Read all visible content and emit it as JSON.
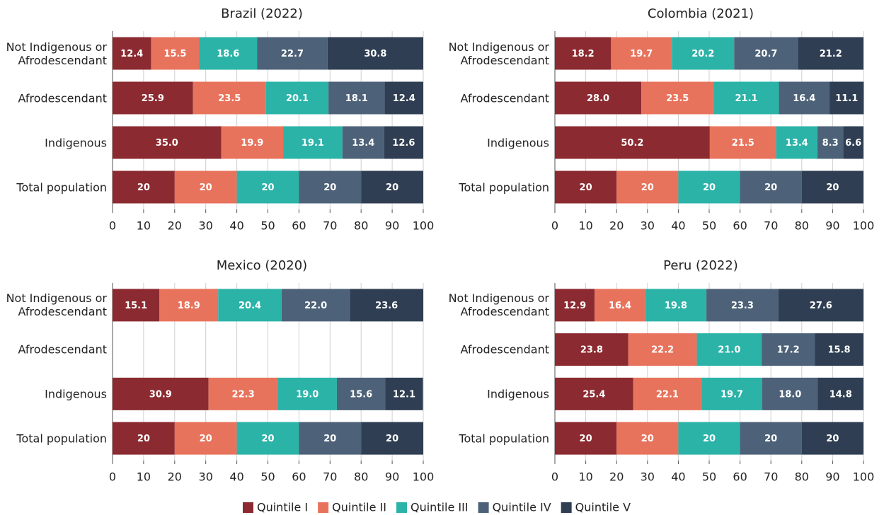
{
  "chart_data": [
    {
      "type": "bar",
      "orientation": "horizontal",
      "title": "Brazil (2022)",
      "categories": [
        "Not Indigenous or Afrodescendant",
        "Afrodescendant",
        "Indigenous",
        "Total population"
      ],
      "series": [
        {
          "name": "Quintile I",
          "color": "#8b2a30",
          "values": [
            12.4,
            25.9,
            35.0,
            20
          ],
          "value_labels": [
            "12.4",
            "25.9",
            "35.0",
            "20"
          ]
        },
        {
          "name": "Quintile II",
          "color": "#e8735c",
          "values": [
            15.5,
            23.5,
            19.9,
            20
          ],
          "value_labels": [
            "15.5",
            "23.5",
            "19.9",
            "20"
          ]
        },
        {
          "name": "Quintile III",
          "color": "#2bb3a8",
          "values": [
            18.6,
            20.1,
            19.1,
            20
          ],
          "value_labels": [
            "18.6",
            "20.1",
            "19.1",
            "20"
          ]
        },
        {
          "name": "Quintile IV",
          "color": "#4d6278",
          "values": [
            22.7,
            18.1,
            13.4,
            20
          ],
          "value_labels": [
            "22.7",
            "18.1",
            "13.4",
            "20"
          ]
        },
        {
          "name": "Quintile V",
          "color": "#2f3e52",
          "values": [
            30.8,
            12.4,
            12.6,
            20
          ],
          "value_labels": [
            "30.8",
            "12.4",
            "12.6",
            "20"
          ]
        }
      ],
      "xlim": [
        0,
        100
      ],
      "xticks": [
        0,
        10,
        20,
        30,
        40,
        50,
        60,
        70,
        80,
        90,
        100
      ],
      "grid": true
    },
    {
      "type": "bar",
      "orientation": "horizontal",
      "title": "Colombia (2021)",
      "categories": [
        "Not Indigenous or Afrodescendant",
        "Afrodescendant",
        "Indigenous",
        "Total population"
      ],
      "series": [
        {
          "name": "Quintile I",
          "color": "#8b2a30",
          "values": [
            18.2,
            28.0,
            50.2,
            20
          ],
          "value_labels": [
            "18.2",
            "28.0",
            "50.2",
            "20"
          ]
        },
        {
          "name": "Quintile II",
          "color": "#e8735c",
          "values": [
            19.7,
            23.5,
            21.5,
            20
          ],
          "value_labels": [
            "19.7",
            "23.5",
            "21.5",
            "20"
          ]
        },
        {
          "name": "Quintile III",
          "color": "#2bb3a8",
          "values": [
            20.2,
            21.1,
            13.4,
            20
          ],
          "value_labels": [
            "20.2",
            "21.1",
            "13.4",
            "20"
          ]
        },
        {
          "name": "Quintile IV",
          "color": "#4d6278",
          "values": [
            20.7,
            16.4,
            8.3,
            20
          ],
          "value_labels": [
            "20.7",
            "16.4",
            "8.3",
            "20"
          ]
        },
        {
          "name": "Quintile V",
          "color": "#2f3e52",
          "values": [
            21.2,
            11.1,
            6.6,
            20
          ],
          "value_labels": [
            "21.2",
            "11.1",
            "6.6",
            "20"
          ]
        }
      ],
      "xlim": [
        0,
        100
      ],
      "xticks": [
        0,
        10,
        20,
        30,
        40,
        50,
        60,
        70,
        80,
        90,
        100
      ],
      "grid": true
    },
    {
      "type": "bar",
      "orientation": "horizontal",
      "title": "Mexico (2020)",
      "categories": [
        "Not Indigenous or Afrodescendant",
        "Afrodescendant",
        "Indigenous",
        "Total population"
      ],
      "series": [
        {
          "name": "Quintile I",
          "color": "#8b2a30",
          "values": [
            15.1,
            null,
            30.9,
            20
          ],
          "value_labels": [
            "15.1",
            null,
            "30.9",
            "20"
          ]
        },
        {
          "name": "Quintile II",
          "color": "#e8735c",
          "values": [
            18.9,
            null,
            22.3,
            20
          ],
          "value_labels": [
            "18.9",
            null,
            "22.3",
            "20"
          ]
        },
        {
          "name": "Quintile III",
          "color": "#2bb3a8",
          "values": [
            20.4,
            null,
            19.0,
            20
          ],
          "value_labels": [
            "20.4",
            null,
            "19.0",
            "20"
          ]
        },
        {
          "name": "Quintile IV",
          "color": "#4d6278",
          "values": [
            22.0,
            null,
            15.6,
            20
          ],
          "value_labels": [
            "22.0",
            null,
            "15.6",
            "20"
          ]
        },
        {
          "name": "Quintile V",
          "color": "#2f3e52",
          "values": [
            23.6,
            null,
            12.1,
            20
          ],
          "value_labels": [
            "23.6",
            null,
            "12.1",
            "20"
          ]
        }
      ],
      "xlim": [
        0,
        100
      ],
      "xticks": [
        0,
        10,
        20,
        30,
        40,
        50,
        60,
        70,
        80,
        90,
        100
      ],
      "grid": true
    },
    {
      "type": "bar",
      "orientation": "horizontal",
      "title": "Peru (2022)",
      "categories": [
        "Not Indigenous or Afrodescendant",
        "Afrodescendant",
        "Indigenous",
        "Total population"
      ],
      "series": [
        {
          "name": "Quintile I",
          "color": "#8b2a30",
          "values": [
            12.9,
            23.8,
            25.4,
            20
          ],
          "value_labels": [
            "12.9",
            "23.8",
            "25.4",
            "20"
          ]
        },
        {
          "name": "Quintile II",
          "color": "#e8735c",
          "values": [
            16.4,
            22.2,
            22.1,
            20
          ],
          "value_labels": [
            "16.4",
            "22.2",
            "22.1",
            "20"
          ]
        },
        {
          "name": "Quintile III",
          "color": "#2bb3a8",
          "values": [
            19.8,
            21.0,
            19.7,
            20
          ],
          "value_labels": [
            "19.8",
            "21.0",
            "19.7",
            "20"
          ]
        },
        {
          "name": "Quintile IV",
          "color": "#4d6278",
          "values": [
            23.3,
            17.2,
            18.0,
            20
          ],
          "value_labels": [
            "23.3",
            "17.2",
            "18.0",
            "20"
          ]
        },
        {
          "name": "Quintile V",
          "color": "#2f3e52",
          "values": [
            27.6,
            15.8,
            14.8,
            20
          ],
          "value_labels": [
            "27.6",
            "15.8",
            "14.8",
            "20"
          ]
        }
      ],
      "xlim": [
        0,
        100
      ],
      "xticks": [
        0,
        10,
        20,
        30,
        40,
        50,
        60,
        70,
        80,
        90,
        100
      ],
      "grid": true
    }
  ]
}
